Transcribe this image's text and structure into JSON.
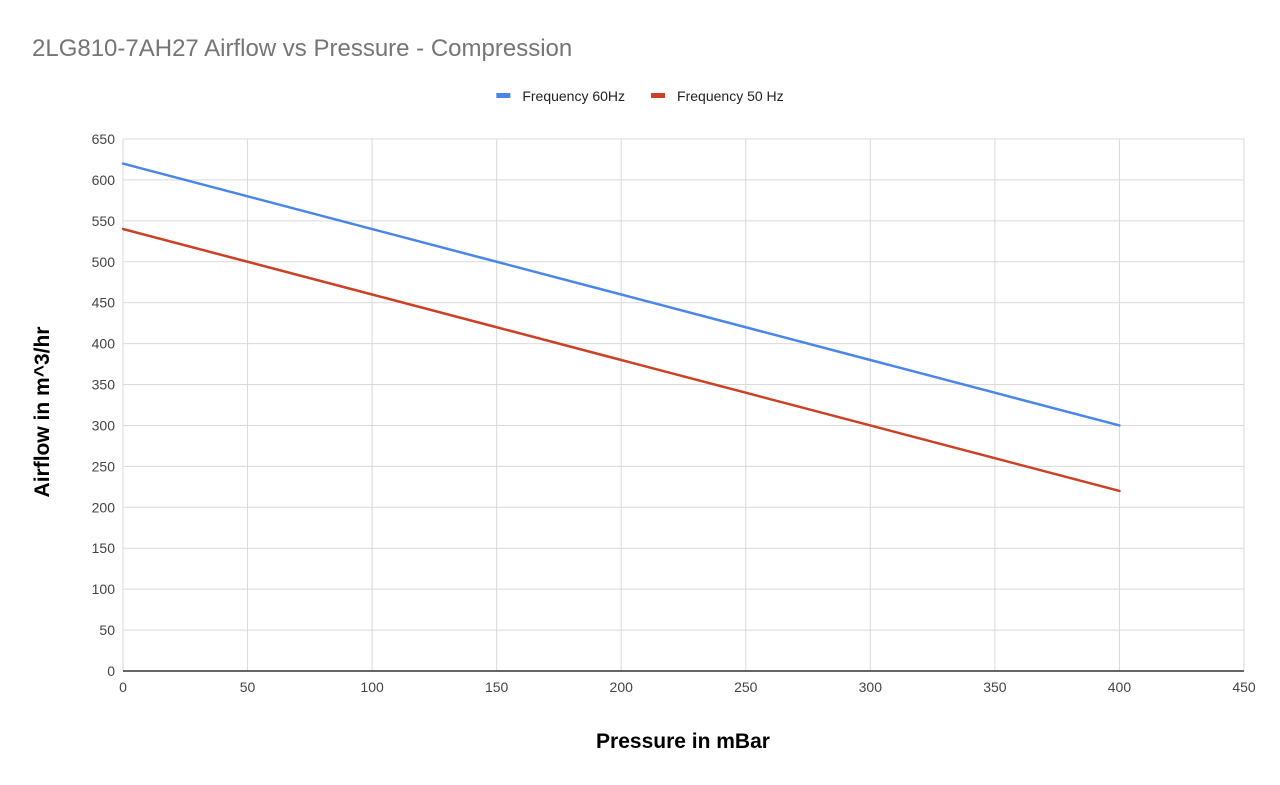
{
  "chart_data": {
    "type": "line",
    "title": "2LG810-7AH27 Airflow vs Pressure - Compression",
    "xlabel": "Pressure in mBar",
    "ylabel": "Airflow in m^3/hr",
    "xlim": [
      0,
      450
    ],
    "ylim": [
      0,
      650
    ],
    "xticks": [
      0,
      50,
      100,
      150,
      200,
      250,
      300,
      350,
      400,
      450
    ],
    "yticks": [
      0,
      50,
      100,
      150,
      200,
      250,
      300,
      350,
      400,
      450,
      500,
      550,
      600,
      650
    ],
    "x": [
      0,
      50,
      100,
      150,
      200,
      250,
      300,
      350,
      400
    ],
    "series": [
      {
        "name": "Frequency 60Hz",
        "color": "#4a86e8",
        "values": [
          620,
          580,
          540,
          500,
          460,
          420,
          380,
          340,
          300
        ]
      },
      {
        "name": "Frequency 50 Hz",
        "color": "#cc4125",
        "values": [
          540,
          500,
          460,
          420,
          380,
          340,
          300,
          260,
          220
        ]
      }
    ],
    "grid": true,
    "legend_position": "top"
  }
}
